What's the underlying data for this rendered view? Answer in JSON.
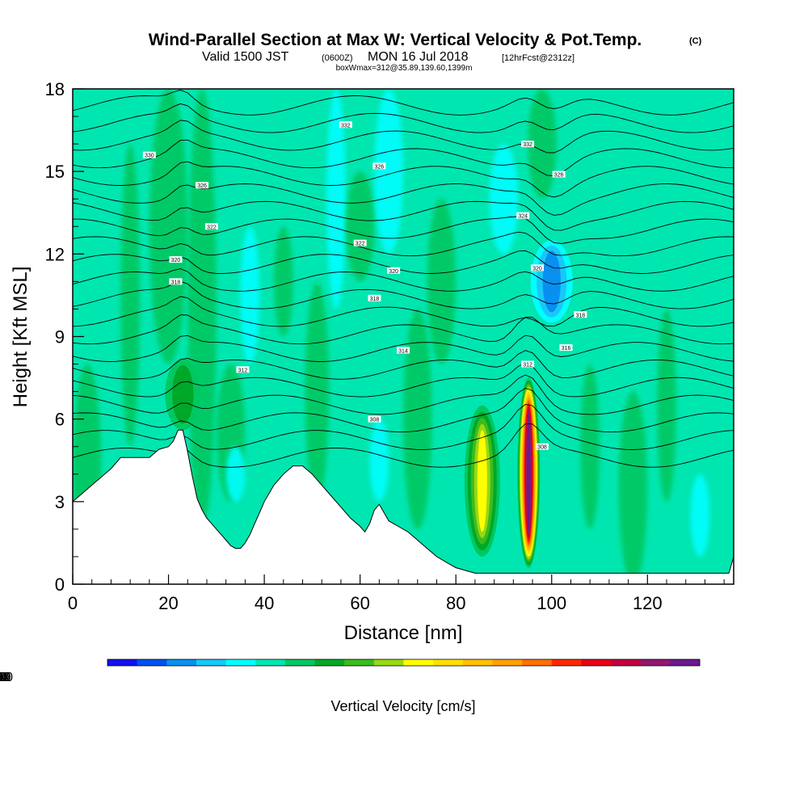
{
  "titles": {
    "main": "Wind-Parallel Section at Max W: Vertical Velocity & Pot.Temp.",
    "copyright": "(C)",
    "valid_prefix": "Valid 1500 JST",
    "valid_zulu": "(0600Z)",
    "valid_date": "MON 16 Jul 2018",
    "forecast": "[12hrFcst@2312z]",
    "box_info": "boxWmax=312@35.89,139.60,1399m"
  },
  "chart_data": {
    "type": "heatmap",
    "xlabel": "Distance [nm]",
    "ylabel": "Height [Kft MSL]",
    "xlim": [
      0,
      138
    ],
    "ylim": [
      0,
      18
    ],
    "x_ticks": [
      "0",
      "20",
      "40",
      "60",
      "80",
      "100",
      "120"
    ],
    "x_tick_values": [
      0,
      20,
      40,
      60,
      80,
      100,
      120
    ],
    "y_ticks": [
      "0",
      "3",
      "6",
      "9",
      "12",
      "15",
      "18"
    ],
    "y_tick_values": [
      0,
      3,
      6,
      9,
      12,
      15,
      18
    ],
    "colorbar": {
      "title": "Vertical Velocity [cm/s]",
      "labels": [
        "-100",
        "-40",
        "20",
        "80",
        "140",
        "200",
        "260"
      ],
      "label_values": [
        -100,
        -40,
        20,
        80,
        140,
        200,
        260
      ],
      "bin_edges": [
        -100,
        -80,
        -60,
        -40,
        -20,
        0,
        20,
        40,
        60,
        80,
        100,
        120,
        140,
        160,
        180,
        200,
        220,
        240,
        260,
        280
      ],
      "colors": [
        "#1010f0",
        "#0050f0",
        "#0890f0",
        "#18c8f8",
        "#00ffff",
        "#00e6b0",
        "#00c860",
        "#00a828",
        "#3cbc1c",
        "#98d814",
        "#ffff00",
        "#ffe000",
        "#ffc000",
        "#ffa000",
        "#ff7000",
        "#ff2800",
        "#e80018",
        "#c00040",
        "#901870",
        "#6c1890"
      ]
    },
    "terrain": {
      "x": [
        0,
        2,
        4,
        6,
        8,
        10,
        12,
        14,
        16,
        18,
        20,
        21,
        22,
        23,
        24,
        25,
        26,
        27,
        28,
        29,
        30,
        31,
        32,
        33,
        34,
        35,
        36,
        37,
        38,
        39,
        40,
        42,
        44,
        46,
        48,
        50,
        52,
        54,
        56,
        58,
        60,
        61,
        62,
        63,
        64,
        65,
        66,
        68,
        70,
        72,
        74,
        76,
        78,
        80,
        82,
        84,
        86,
        88,
        90,
        92,
        94,
        96,
        98,
        100,
        110,
        120,
        130,
        137,
        138
      ],
      "y": [
        3.0,
        3.3,
        3.6,
        3.9,
        4.2,
        4.6,
        4.6,
        4.6,
        4.6,
        4.9,
        5.0,
        5.2,
        5.6,
        5.6,
        4.8,
        3.9,
        3.1,
        2.7,
        2.4,
        2.2,
        2.0,
        1.8,
        1.6,
        1.4,
        1.3,
        1.3,
        1.5,
        1.8,
        2.2,
        2.6,
        3.0,
        3.6,
        4.0,
        4.3,
        4.3,
        4.0,
        3.6,
        3.2,
        2.8,
        2.4,
        2.1,
        1.9,
        2.2,
        2.7,
        2.9,
        2.6,
        2.3,
        2.1,
        1.9,
        1.6,
        1.3,
        1.0,
        0.8,
        0.6,
        0.5,
        0.4,
        0.4,
        0.4,
        0.4,
        0.4,
        0.4,
        0.4,
        0.4,
        0.4,
        0.4,
        0.4,
        0.4,
        0.4,
        1.0
      ]
    },
    "features": [
      {
        "label": "updraft-core-95nm",
        "x": 95.2,
        "y_bottom": 0.6,
        "y_top": 7.5,
        "w_max": 312
      },
      {
        "label": "updraft-85nm",
        "x": 85.5,
        "y_bottom": 1.0,
        "y_top": 6.5,
        "w_max": 110
      },
      {
        "label": "updraft-23nm",
        "x": 23.0,
        "y_bottom": 5.6,
        "y_top": 8.2,
        "w_max": 60
      },
      {
        "label": "downdraft-100nm",
        "x": 100.0,
        "y_bottom": 9.5,
        "y_top": 12.5,
        "w_max": -65
      }
    ],
    "isentropes_theta_K": [
      302,
      304,
      306,
      308,
      310,
      312,
      314,
      316,
      318,
      320,
      322,
      324,
      326,
      328,
      330,
      332,
      334,
      336,
      338,
      340,
      342
    ],
    "isentrope_labels": [
      {
        "text": "330",
        "x": 16.0,
        "y": 15.6
      },
      {
        "text": "326",
        "x": 27.0,
        "y": 14.5
      },
      {
        "text": "322",
        "x": 29.0,
        "y": 13.0
      },
      {
        "text": "320",
        "x": 21.5,
        "y": 11.8
      },
      {
        "text": "318",
        "x": 21.5,
        "y": 11.0
      },
      {
        "text": "312",
        "x": 35.5,
        "y": 7.8
      },
      {
        "text": "332",
        "x": 57.0,
        "y": 16.7
      },
      {
        "text": "326",
        "x": 64.0,
        "y": 15.2
      },
      {
        "text": "322",
        "x": 60.0,
        "y": 12.4
      },
      {
        "text": "320",
        "x": 67.0,
        "y": 11.4
      },
      {
        "text": "318",
        "x": 63.0,
        "y": 10.4
      },
      {
        "text": "314",
        "x": 69.0,
        "y": 8.5
      },
      {
        "text": "308",
        "x": 63.0,
        "y": 6.0
      },
      {
        "text": "332",
        "x": 95.0,
        "y": 16.0
      },
      {
        "text": "326",
        "x": 101.5,
        "y": 14.9
      },
      {
        "text": "324",
        "x": 94.0,
        "y": 13.4
      },
      {
        "text": "320",
        "x": 97.0,
        "y": 11.5
      },
      {
        "text": "318",
        "x": 106.0,
        "y": 9.8
      },
      {
        "text": "316",
        "x": 103.0,
        "y": 8.6
      },
      {
        "text": "312",
        "x": 95.0,
        "y": 8.0
      },
      {
        "text": "308",
        "x": 98.0,
        "y": 5.0
      }
    ]
  }
}
